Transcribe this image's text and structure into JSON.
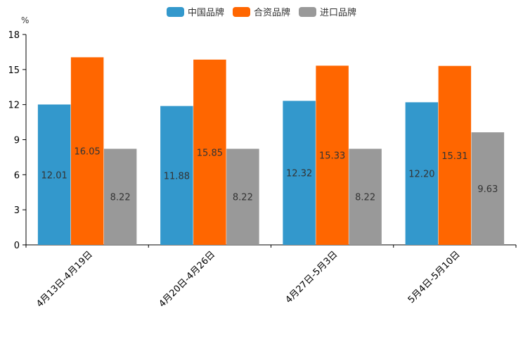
{
  "chart_data": {
    "type": "bar",
    "unit": "%",
    "categories": [
      "4月13日-4月19日",
      "4月20日-4月26日",
      "4月27日-5月3日",
      "5月4日-5月10日"
    ],
    "series": [
      {
        "name": "中国品牌",
        "color": "#3398CC",
        "values": [
          12.01,
          11.88,
          12.32,
          12.2
        ]
      },
      {
        "name": "合资品牌",
        "color": "#FF6600",
        "values": [
          16.05,
          15.85,
          15.33,
          15.31
        ]
      },
      {
        "name": "进口品牌",
        "color": "#999999",
        "values": [
          8.22,
          8.22,
          8.22,
          9.63
        ]
      }
    ],
    "data_labels": [
      [
        "12.01",
        "11.88",
        "12.32",
        "12.20"
      ],
      [
        "16.05",
        "15.85",
        "15.33",
        "15.31"
      ],
      [
        "8.22",
        "8.22",
        "8.22",
        "9.63"
      ]
    ],
    "ylim": [
      0,
      18
    ],
    "yticks": [
      0,
      3,
      6,
      9,
      12,
      15,
      18
    ],
    "legend_position": "top-center",
    "grid": false
  }
}
